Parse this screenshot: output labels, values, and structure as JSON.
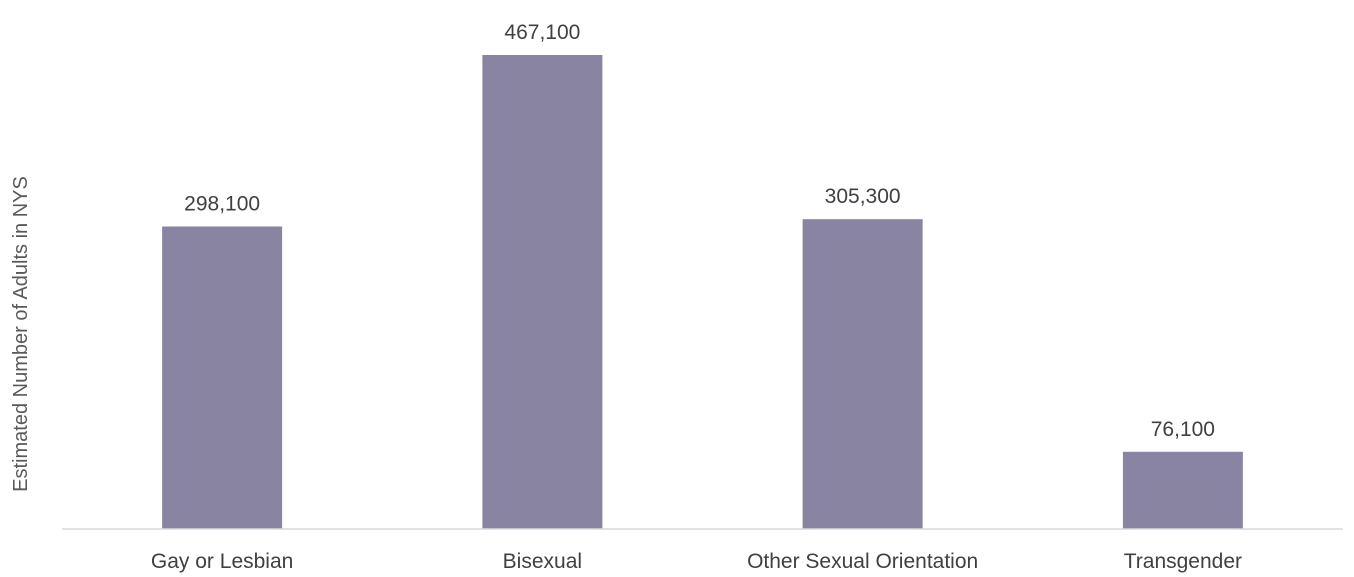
{
  "chart_data": {
    "type": "bar",
    "title": "",
    "xlabel": "",
    "ylabel": "Estimated Number of Adults in NYS",
    "categories": [
      "Gay or Lesbian",
      "Bisexual",
      "Other Sexual Orientation",
      "Transgender"
    ],
    "values": [
      298100,
      467100,
      305300,
      76100
    ],
    "data_labels": [
      "298,100",
      "467,100",
      "305,300",
      "76,100"
    ],
    "ylim": [
      0,
      500000
    ],
    "grid": false,
    "legend": "none",
    "bar_color": "#8a84a3",
    "axis_color": "#d9d9d9",
    "text_color": "#404040"
  }
}
